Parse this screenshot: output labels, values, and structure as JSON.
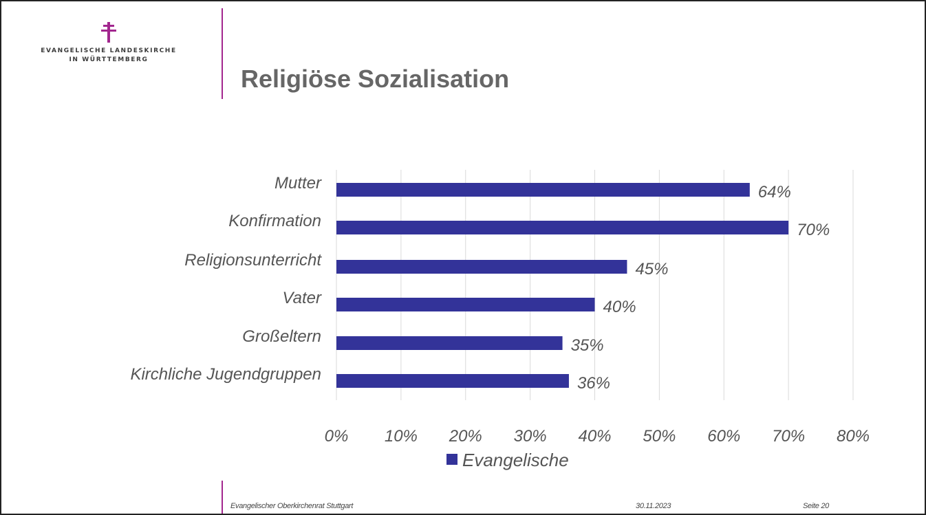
{
  "header": {
    "logo": {
      "line1": "Evangelische Landeskirche",
      "line2": "in Württemberg",
      "icon": "cross-icon"
    },
    "title": "Religiöse Sozialisation"
  },
  "colors": {
    "accent": "#a2268e",
    "bar": "#333399",
    "grid": "#d9d9d9",
    "text": "#555555",
    "title": "#666666"
  },
  "chart_data": {
    "type": "bar",
    "orientation": "horizontal",
    "categories": [
      "Mutter",
      "Konfirmation",
      "Religionsunterricht",
      "Vater",
      "Großeltern",
      "Kirchliche Jugendgruppen"
    ],
    "series": [
      {
        "name": "Evangelische",
        "values": [
          64,
          70,
          45,
          40,
          35,
          36
        ]
      }
    ],
    "data_labels": [
      "64%",
      "70%",
      "45%",
      "40%",
      "35%",
      "36%"
    ],
    "xlim": [
      0,
      80
    ],
    "x_ticks": [
      "0%",
      "10%",
      "20%",
      "30%",
      "40%",
      "50%",
      "60%",
      "70%",
      "80%"
    ],
    "grid": true,
    "legend": "bottom"
  },
  "footer": {
    "org": "Evangelischer Oberkirchenrat Stuttgart",
    "date": "30.11.2023",
    "page": "Seite 20"
  }
}
